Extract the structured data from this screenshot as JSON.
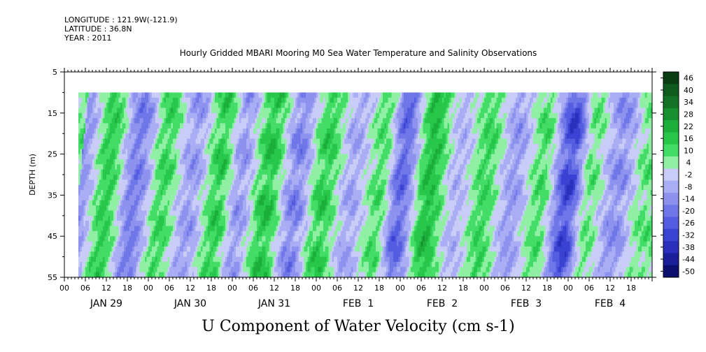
{
  "header": {
    "longitude": "LONGITUDE : 121.9W(-121.9)",
    "latitude": "LATITUDE : 36.8N",
    "year": "YEAR : 2011"
  },
  "chart_data": {
    "type": "heatmap",
    "title": "Hourly Gridded MBARI Mooring M0 Sea Water Temperature and Salinity Observations",
    "xlabel": "",
    "ylabel": "DEPTH (m)",
    "colorbar_label": "U Component of Water Velocity (cm s-1)",
    "x_hour_ticks": [
      "00",
      "06",
      "12",
      "18",
      "00",
      "06",
      "12",
      "18",
      "00",
      "06",
      "12",
      "18",
      "00",
      "06",
      "12",
      "18",
      "00",
      "06",
      "12",
      "18",
      "00",
      "06",
      "12",
      "18",
      "00",
      "06",
      "12",
      "18"
    ],
    "x_day_labels": [
      "JAN 29",
      "JAN 30",
      "JAN 31",
      "FEB  1",
      "FEB  2",
      "FEB  3",
      "FEB  4"
    ],
    "x_range_hours": [
      0,
      168
    ],
    "data_start_hour": 4,
    "y_ticks": [
      5,
      15,
      25,
      35,
      45,
      55
    ],
    "y_range": [
      5,
      55
    ],
    "data_depth_range": [
      10,
      55
    ],
    "colorbar_ticks": [
      46,
      40,
      34,
      28,
      22,
      16,
      10,
      4,
      -2,
      -8,
      -14,
      -20,
      -26,
      -32,
      -38,
      -44,
      -50
    ],
    "colorbar_levels": [
      {
        "value": 46,
        "color": "#0a3d12"
      },
      {
        "value": 40,
        "color": "#0f5a1d"
      },
      {
        "value": 34,
        "color": "#137225"
      },
      {
        "value": 28,
        "color": "#17902f"
      },
      {
        "value": 22,
        "color": "#1cae3a"
      },
      {
        "value": 16,
        "color": "#26c74a"
      },
      {
        "value": 10,
        "color": "#43dc67"
      },
      {
        "value": 4,
        "color": "#8ff0a4"
      },
      {
        "value": -2,
        "color": "#c9ccf7"
      },
      {
        "value": -8,
        "color": "#a9aef4"
      },
      {
        "value": -14,
        "color": "#8d92ee"
      },
      {
        "value": -20,
        "color": "#6f76e8"
      },
      {
        "value": -26,
        "color": "#545ce0"
      },
      {
        "value": -32,
        "color": "#3a42d4"
      },
      {
        "value": -38,
        "color": "#2a30bc"
      },
      {
        "value": -44,
        "color": "#1b1f9a"
      },
      {
        "value": -50,
        "color": "#0c0f6e"
      }
    ],
    "sign_pattern_hours": [
      {
        "hour": 4,
        "value": -12
      },
      {
        "hour": 12,
        "value": 12
      },
      {
        "hour": 20,
        "value": -16
      },
      {
        "hour": 28,
        "value": 10
      },
      {
        "hour": 36,
        "value": -10
      },
      {
        "hour": 44,
        "value": 12
      },
      {
        "hour": 50,
        "value": -10
      },
      {
        "hour": 58,
        "value": 14
      },
      {
        "hour": 66,
        "value": -14
      },
      {
        "hour": 74,
        "value": 12
      },
      {
        "hour": 82,
        "value": -8
      },
      {
        "hour": 90,
        "value": 8
      },
      {
        "hour": 96,
        "value": -20
      },
      {
        "hour": 104,
        "value": 16
      },
      {
        "hour": 112,
        "value": -6
      },
      {
        "hour": 120,
        "value": 10
      },
      {
        "hour": 128,
        "value": -10
      },
      {
        "hour": 136,
        "value": 8
      },
      {
        "hour": 144,
        "value": -26
      },
      {
        "hour": 150,
        "value": 6
      },
      {
        "hour": 158,
        "value": -12
      },
      {
        "hour": 166,
        "value": 6
      }
    ]
  }
}
